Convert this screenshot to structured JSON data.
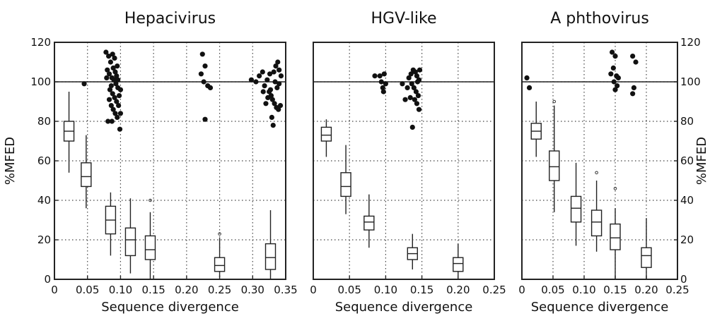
{
  "chart_data": [
    {
      "type": "box+scatter",
      "title": "Hepacivirus",
      "xlabel": "Sequence divergence",
      "ylabel": "%MFED",
      "xlim": [
        0,
        0.35
      ],
      "ylim": [
        0,
        120
      ],
      "x_ticks": [
        "0",
        "0.05",
        "0.10",
        "0.15",
        "0.20",
        "0.25",
        "0.30",
        "0.35"
      ],
      "y_ticks": [
        "0",
        "20",
        "40",
        "60",
        "80",
        "100",
        "120"
      ],
      "y_axis_side": "left",
      "grid": true,
      "reference_line": 100,
      "boxes": [
        {
          "x": 0.022,
          "whisker_low": 54,
          "q1": 70,
          "median": 75,
          "q3": 80,
          "whisker_high": 95
        },
        {
          "x": 0.048,
          "whisker_low": 36,
          "q1": 47,
          "median": 52,
          "q3": 59,
          "whisker_high": 73
        },
        {
          "x": 0.085,
          "whisker_low": 12,
          "q1": 23,
          "median": 30,
          "q3": 37,
          "whisker_high": 44
        },
        {
          "x": 0.115,
          "whisker_low": 3,
          "q1": 12,
          "median": 20,
          "q3": 26,
          "whisker_high": 41
        },
        {
          "x": 0.145,
          "whisker_low": 0,
          "q1": 10,
          "median": 15,
          "q3": 22,
          "whisker_high": 34
        },
        {
          "x": 0.25,
          "whisker_low": 1,
          "q1": 4,
          "median": 7,
          "q3": 11,
          "whisker_high": 21
        },
        {
          "x": 0.327,
          "whisker_low": 0,
          "q1": 5,
          "median": 11,
          "q3": 18,
          "whisker_high": 35
        }
      ],
      "outliers": [
        {
          "x": 0.145,
          "y": 40
        },
        {
          "x": 0.25,
          "y": 23
        }
      ],
      "points": [
        [
          0.045,
          99
        ],
        [
          0.078,
          115
        ],
        [
          0.082,
          113
        ],
        [
          0.085,
          110
        ],
        [
          0.088,
          114
        ],
        [
          0.091,
          112
        ],
        [
          0.095,
          108
        ],
        [
          0.08,
          106
        ],
        [
          0.083,
          104
        ],
        [
          0.087,
          102
        ],
        [
          0.09,
          101
        ],
        [
          0.093,
          99
        ],
        [
          0.096,
          97
        ],
        [
          0.084,
          96
        ],
        [
          0.088,
          94
        ],
        [
          0.091,
          92
        ],
        [
          0.094,
          90
        ],
        [
          0.086,
          88
        ],
        [
          0.089,
          86
        ],
        [
          0.092,
          84
        ],
        [
          0.095,
          82
        ],
        [
          0.081,
          80
        ],
        [
          0.087,
          80
        ],
        [
          0.099,
          76
        ],
        [
          0.1,
          84
        ],
        [
          0.097,
          88
        ],
        [
          0.098,
          93
        ],
        [
          0.1,
          96
        ],
        [
          0.083,
          91
        ],
        [
          0.086,
          98
        ],
        [
          0.079,
          102
        ],
        [
          0.092,
          105
        ],
        [
          0.094,
          103
        ],
        [
          0.096,
          101
        ],
        [
          0.089,
          107
        ],
        [
          0.224,
          114
        ],
        [
          0.228,
          108
        ],
        [
          0.222,
          104
        ],
        [
          0.226,
          100
        ],
        [
          0.232,
          98
        ],
        [
          0.236,
          97
        ],
        [
          0.228,
          81
        ],
        [
          0.298,
          101
        ],
        [
          0.305,
          100
        ],
        [
          0.31,
          103
        ],
        [
          0.315,
          105
        ],
        [
          0.318,
          98
        ],
        [
          0.322,
          101
        ],
        [
          0.325,
          95
        ],
        [
          0.328,
          93
        ],
        [
          0.33,
          91
        ],
        [
          0.333,
          89
        ],
        [
          0.336,
          87
        ],
        [
          0.339,
          86
        ],
        [
          0.342,
          88
        ],
        [
          0.332,
          105
        ],
        [
          0.335,
          108
        ],
        [
          0.338,
          110
        ],
        [
          0.34,
          106
        ],
        [
          0.326,
          104
        ],
        [
          0.323,
          92
        ],
        [
          0.327,
          96
        ],
        [
          0.329,
          82
        ],
        [
          0.331,
          78
        ],
        [
          0.337,
          97
        ],
        [
          0.34,
          99
        ],
        [
          0.343,
          103
        ],
        [
          0.316,
          95
        ],
        [
          0.32,
          89
        ],
        [
          0.334,
          100
        ]
      ]
    },
    {
      "type": "box+scatter",
      "title": "HGV-like",
      "xlabel": "Sequence divergence",
      "ylabel": "",
      "xlim": [
        0,
        0.25
      ],
      "ylim": [
        0,
        120
      ],
      "x_ticks": [
        "0",
        "0.05",
        "0.10",
        "0.15",
        "0.20",
        "0.25"
      ],
      "y_ticks": [],
      "grid": true,
      "reference_line": 100,
      "boxes": [
        {
          "x": 0.018,
          "whisker_low": 62,
          "q1": 70,
          "median": 73,
          "q3": 77,
          "whisker_high": 81
        },
        {
          "x": 0.045,
          "whisker_low": 33,
          "q1": 42,
          "median": 47,
          "q3": 54,
          "whisker_high": 68
        },
        {
          "x": 0.077,
          "whisker_low": 16,
          "q1": 25,
          "median": 29,
          "q3": 32,
          "whisker_high": 43
        },
        {
          "x": 0.137,
          "whisker_low": 5,
          "q1": 10,
          "median": 13,
          "q3": 16,
          "whisker_high": 23
        },
        {
          "x": 0.2,
          "whisker_low": 0,
          "q1": 4,
          "median": 8,
          "q3": 11,
          "whisker_high": 18
        }
      ],
      "outliers": [],
      "points": [
        [
          0.085,
          103
        ],
        [
          0.092,
          103
        ],
        [
          0.098,
          104
        ],
        [
          0.094,
          100
        ],
        [
          0.096,
          97
        ],
        [
          0.097,
          95
        ],
        [
          0.1,
          99
        ],
        [
          0.123,
          99
        ],
        [
          0.127,
          91
        ],
        [
          0.13,
          97
        ],
        [
          0.132,
          102
        ],
        [
          0.135,
          104
        ],
        [
          0.138,
          106
        ],
        [
          0.141,
          105
        ],
        [
          0.143,
          103
        ],
        [
          0.146,
          101
        ],
        [
          0.136,
          99
        ],
        [
          0.139,
          97
        ],
        [
          0.142,
          95
        ],
        [
          0.145,
          93
        ],
        [
          0.14,
          91
        ],
        [
          0.143,
          89
        ],
        [
          0.146,
          86
        ],
        [
          0.134,
          92
        ],
        [
          0.137,
          77
        ],
        [
          0.144,
          100
        ],
        [
          0.147,
          106
        ]
      ]
    },
    {
      "type": "box+scatter",
      "title": "A phthovirus",
      "xlabel": "Sequence divergence",
      "ylabel": "%MFED",
      "xlim": [
        0,
        0.25
      ],
      "ylim": [
        0,
        120
      ],
      "x_ticks": [
        "0",
        "0.05",
        "0.10",
        "0.15",
        "0.20",
        "0.25"
      ],
      "y_ticks": [
        "0",
        "20",
        "40",
        "60",
        "80",
        "100",
        "120"
      ],
      "y_axis_side": "right",
      "grid": true,
      "reference_line": 100,
      "boxes": [
        {
          "x": 0.023,
          "whisker_low": 62,
          "q1": 71,
          "median": 75,
          "q3": 79,
          "whisker_high": 90
        },
        {
          "x": 0.052,
          "whisker_low": 34,
          "q1": 50,
          "median": 57,
          "q3": 65,
          "whisker_high": 88
        },
        {
          "x": 0.087,
          "whisker_low": 17,
          "q1": 29,
          "median": 36,
          "q3": 42,
          "whisker_high": 59
        },
        {
          "x": 0.12,
          "whisker_low": 14,
          "q1": 22,
          "median": 29,
          "q3": 35,
          "whisker_high": 50
        },
        {
          "x": 0.15,
          "whisker_low": 0,
          "q1": 15,
          "median": 21,
          "q3": 28,
          "whisker_high": 36
        },
        {
          "x": 0.2,
          "whisker_low": 0,
          "q1": 6,
          "median": 12,
          "q3": 16,
          "whisker_high": 31
        }
      ],
      "outliers": [
        {
          "x": 0.052,
          "y": 90
        },
        {
          "x": 0.12,
          "y": 54
        },
        {
          "x": 0.15,
          "y": 46
        }
      ],
      "points": [
        [
          0.008,
          102
        ],
        [
          0.012,
          97
        ],
        [
          0.145,
          115
        ],
        [
          0.15,
          113
        ],
        [
          0.147,
          107
        ],
        [
          0.152,
          103
        ],
        [
          0.155,
          102
        ],
        [
          0.148,
          100
        ],
        [
          0.153,
          98
        ],
        [
          0.15,
          96
        ],
        [
          0.143,
          104
        ],
        [
          0.178,
          113
        ],
        [
          0.183,
          110
        ],
        [
          0.18,
          97
        ],
        [
          0.178,
          94
        ]
      ]
    }
  ]
}
